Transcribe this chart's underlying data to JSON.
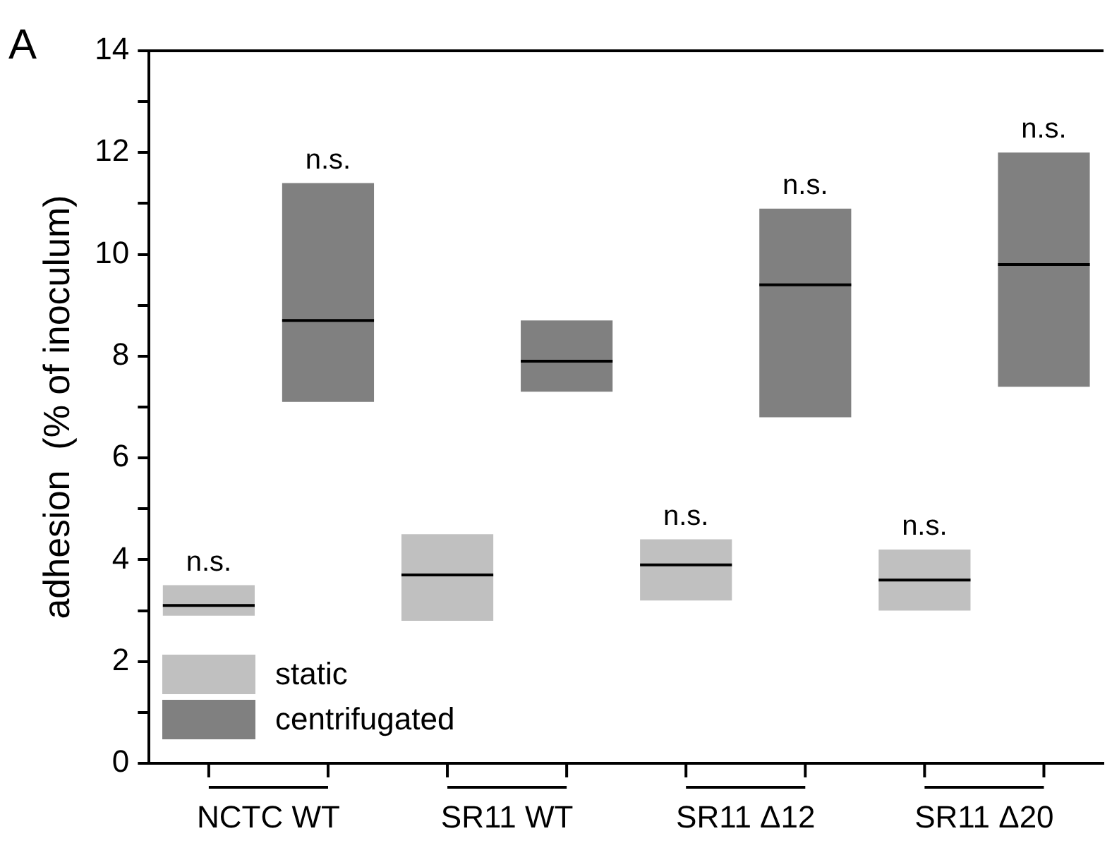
{
  "chart_data": {
    "type": "box",
    "ylabel": "adhesion  (% of inoculum)",
    "categories": [
      "NCTC WT",
      "SR11 WT",
      "SR11 Δ12",
      "SR11 Δ20"
    ],
    "series": [
      {
        "name": "static",
        "color": "#c0c0c0",
        "boxes": [
          {
            "low": 2.9,
            "q1": 2.9,
            "median": 3.1,
            "q3": 3.5,
            "high": 3.5
          },
          {
            "low": 2.8,
            "q1": 2.8,
            "median": 3.7,
            "q3": 4.5,
            "high": 4.5
          },
          {
            "low": 3.2,
            "q1": 3.2,
            "median": 3.9,
            "q3": 4.4,
            "high": 4.4
          },
          {
            "low": 3.0,
            "q1": 3.0,
            "median": 3.6,
            "q3": 4.2,
            "high": 4.2
          }
        ]
      },
      {
        "name": "centrifugated",
        "color": "#808080",
        "boxes": [
          {
            "low": 7.1,
            "q1": 7.1,
            "median": 8.7,
            "q3": 11.4,
            "high": 11.4
          },
          {
            "low": 7.3,
            "q1": 7.3,
            "median": 7.9,
            "q3": 8.7,
            "high": 8.7
          },
          {
            "low": 6.8,
            "q1": 6.8,
            "median": 9.4,
            "q3": 10.9,
            "high": 10.9
          },
          {
            "low": 7.4,
            "q1": 7.4,
            "median": 9.8,
            "q3": 12.0,
            "high": 12.0
          }
        ]
      }
    ],
    "ylim": [
      0,
      14
    ],
    "yticks": [
      0,
      {
        "value": 1,
        "label": null
      },
      2,
      {
        "value": 3,
        "label": null
      },
      4,
      {
        "value": 5,
        "label": null
      },
      6,
      {
        "value": 7,
        "label": null
      },
      8,
      {
        "value": 9,
        "label": null
      },
      10,
      {
        "value": 11,
        "label": null
      },
      12,
      {
        "value": 13,
        "label": null
      },
      14
    ],
    "grid": false,
    "legend": "bottom left",
    "annotations": [
      "A",
      "n.s.",
      "n.s.",
      "n.s.",
      "n.s.",
      "n.s.",
      "n.s."
    ]
  }
}
